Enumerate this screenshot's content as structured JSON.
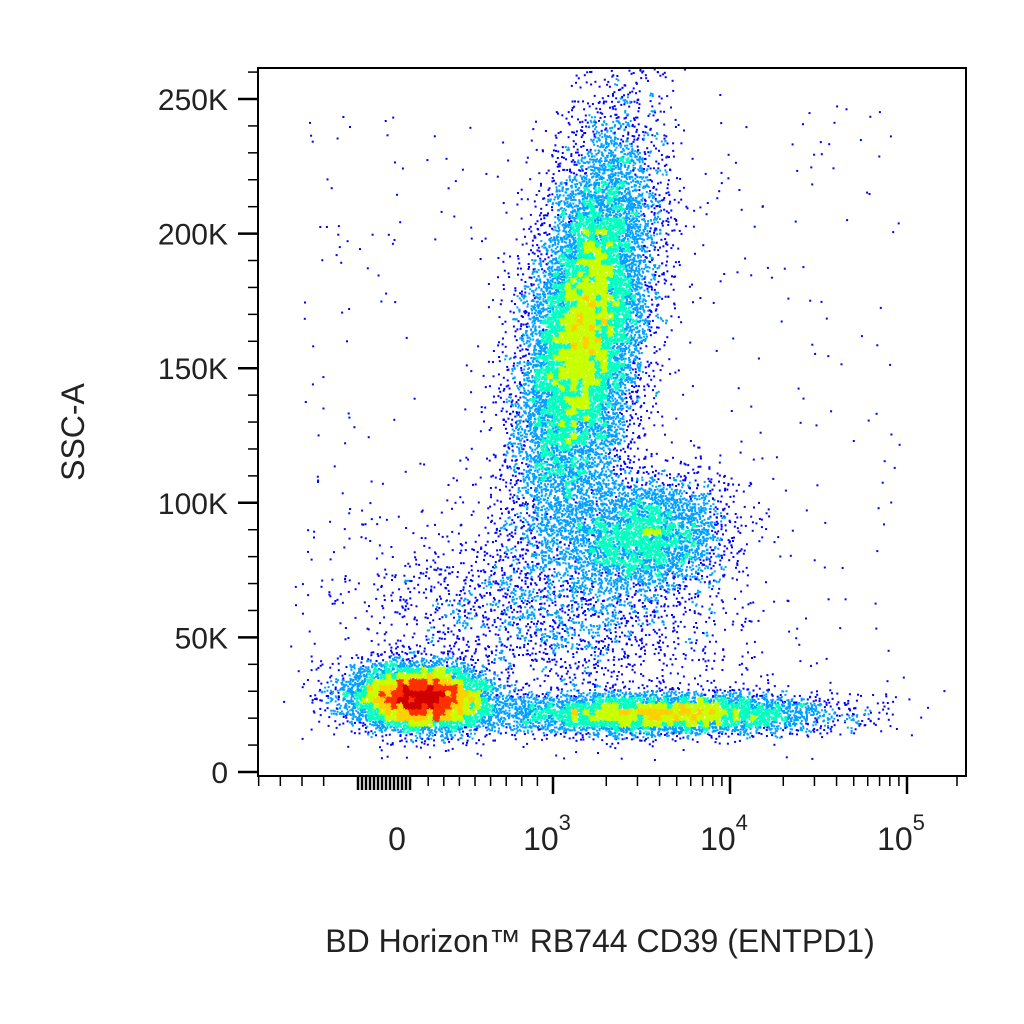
{
  "chart_data": {
    "type": "scatter",
    "subtype": "density-dot-plot",
    "title": "",
    "xlabel": "BD Horizon™ RB744 CD39 (ENTPD1)",
    "ylabel": "SSC-A",
    "x_scale": "biexponential",
    "y_scale": "linear",
    "xlim": [
      -300,
      160000
    ],
    "ylim": [
      0,
      262144
    ],
    "x_ticks": [
      {
        "value": 0,
        "base": "0",
        "exp": ""
      },
      {
        "value": 1000,
        "base": "10",
        "exp": "3"
      },
      {
        "value": 10000,
        "base": "10",
        "exp": "4"
      },
      {
        "value": 100000,
        "base": "10",
        "exp": "5"
      }
    ],
    "y_ticks": [
      {
        "value": 0,
        "label": "0"
      },
      {
        "value": 50000,
        "label": "50K"
      },
      {
        "value": 100000,
        "label": "100K"
      },
      {
        "value": 150000,
        "label": "150K"
      },
      {
        "value": 200000,
        "label": "200K"
      },
      {
        "value": 250000,
        "label": "250K"
      }
    ],
    "color_scale": [
      "#0000ff",
      "#00a0ff",
      "#00ffc0",
      "#c8ff00",
      "#ffd000",
      "#ff3000",
      "#d00000"
    ],
    "grid": false,
    "legend": "none",
    "populations": [
      {
        "center_x": 150,
        "center_y": 28000,
        "count": 9000,
        "peak_density": "high"
      },
      {
        "center_x": 1500,
        "center_y": 165000,
        "count": 16000,
        "peak_density": "high"
      },
      {
        "center_x": 3200,
        "center_y": 88000,
        "count": 4000,
        "peak_density": "medium"
      },
      {
        "center_x": 4000,
        "center_y": 22000,
        "count": 6000,
        "peak_density": "medium"
      },
      {
        "center_x": 1000,
        "center_y": 60000,
        "count": 2000,
        "peak_density": "low"
      }
    ]
  }
}
